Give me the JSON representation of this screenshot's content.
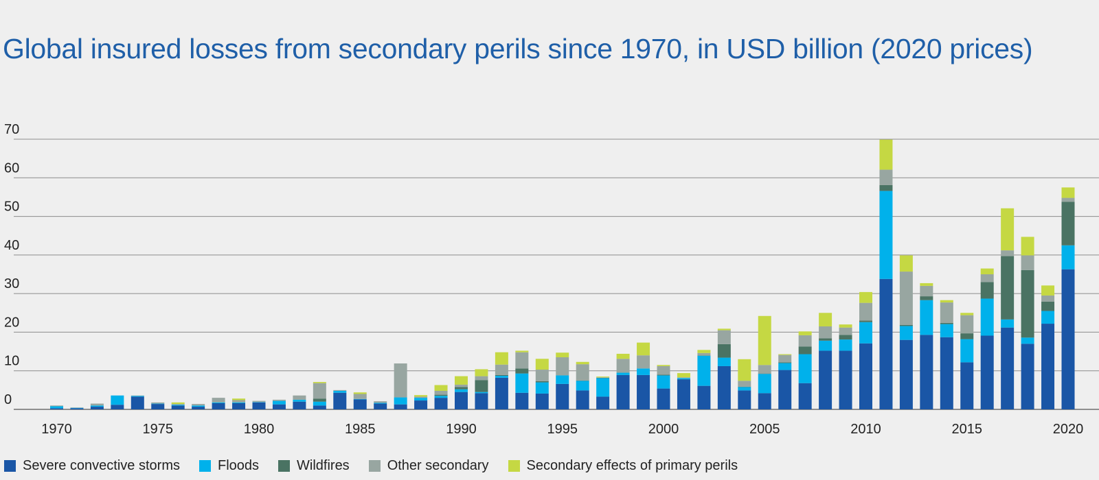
{
  "chart_data": {
    "type": "bar",
    "stacked": true,
    "title": "Global insured losses from secondary perils since 1970, in USD billion (2020 prices)",
    "xlabel": "",
    "ylabel": "",
    "ylim": [
      0,
      70
    ],
    "yticks": [
      "0",
      "10",
      "20",
      "30",
      "40",
      "50",
      "60",
      "70"
    ],
    "xticks": [
      "1970",
      "1975",
      "1980",
      "1985",
      "1990",
      "1995",
      "2000",
      "2005",
      "2010",
      "2015",
      "2020"
    ],
    "grid": true,
    "legend_position": "bottom",
    "categories": [
      1970,
      1971,
      1972,
      1973,
      1974,
      1975,
      1976,
      1977,
      1978,
      1979,
      1980,
      1981,
      1982,
      1983,
      1984,
      1985,
      1986,
      1987,
      1988,
      1989,
      1990,
      1991,
      1992,
      1993,
      1994,
      1995,
      1996,
      1997,
      1998,
      1999,
      2000,
      2001,
      2002,
      2003,
      2004,
      2005,
      2006,
      2007,
      2008,
      2009,
      2010,
      2011,
      2012,
      2013,
      2014,
      2015,
      2016,
      2017,
      2018,
      2019,
      2020
    ],
    "series": [
      {
        "name": "Severe convective storms",
        "color": "#1a56a6",
        "values": [
          0.3,
          0.3,
          0.7,
          1.2,
          3.3,
          1.4,
          1.0,
          0.7,
          1.6,
          1.6,
          1.8,
          1.3,
          2.0,
          1.0,
          4.3,
          2.6,
          1.5,
          1.3,
          2.3,
          3.0,
          4.5,
          4.2,
          8.2,
          4.3,
          4.1,
          6.6,
          4.9,
          3.3,
          8.9,
          8.9,
          5.4,
          7.8,
          6.1,
          11.2,
          4.9,
          4.2,
          10.2,
          6.8,
          15.2,
          15.2,
          17.1,
          33.8,
          18.0,
          19.3,
          18.7,
          12.2,
          19.1,
          21.2,
          17.0,
          22.2,
          36.3
        ]
      },
      {
        "name": "Floods",
        "color": "#00b1eb",
        "values": [
          0.5,
          0.1,
          0.3,
          2.4,
          0.2,
          0.1,
          0.2,
          0.3,
          0.2,
          0.2,
          0.1,
          0.9,
          0.5,
          1.0,
          0.5,
          0.1,
          0.2,
          1.8,
          0.7,
          0.5,
          0.7,
          0.3,
          0.5,
          5.0,
          2.9,
          2.2,
          2.5,
          4.8,
          0.6,
          1.7,
          3.4,
          0.3,
          7.8,
          2.2,
          0.9,
          5.0,
          1.8,
          7.5,
          2.6,
          2.9,
          5.5,
          22.8,
          3.6,
          9.0,
          3.4,
          6.0,
          9.6,
          2.1,
          1.6,
          3.3,
          6.2
        ]
      },
      {
        "name": "Wildfires",
        "color": "#4a7363",
        "values": [
          0,
          0,
          0,
          0,
          0,
          0,
          0,
          0,
          0,
          0,
          0,
          0,
          0,
          0.8,
          0,
          0,
          0,
          0,
          0,
          0.3,
          0.6,
          3.1,
          0.2,
          1.3,
          0.3,
          0,
          0.1,
          0.1,
          0,
          0,
          0.2,
          0,
          0.1,
          3.5,
          0.1,
          0.1,
          0.2,
          2.0,
          0.6,
          1.2,
          0.4,
          1.5,
          0.3,
          1.0,
          0.3,
          1.5,
          4.3,
          16.4,
          17.5,
          2.4,
          11.3
        ]
      },
      {
        "name": "Other secondary",
        "color": "#98a6a1",
        "values": [
          0.2,
          0.1,
          0.5,
          0,
          0.1,
          0.3,
          0.2,
          0.4,
          1.2,
          0.6,
          0.3,
          0.3,
          1.1,
          4.0,
          0.2,
          1.3,
          0.4,
          8.8,
          0.3,
          1.0,
          0.6,
          1.0,
          2.7,
          4.2,
          3.0,
          4.7,
          4.2,
          0.1,
          3.6,
          3.4,
          2.2,
          0.2,
          0.6,
          3.6,
          1.5,
          2.2,
          1.9,
          2.9,
          3.1,
          1.9,
          4.6,
          4.0,
          13.8,
          2.7,
          5.3,
          4.7,
          2.0,
          1.5,
          3.8,
          1.6,
          1.0
        ]
      },
      {
        "name": "Secondary effects of primary perils",
        "color": "#c5d843",
        "values": [
          0,
          0,
          0,
          0,
          0,
          0,
          0.4,
          0,
          0,
          0.4,
          0,
          0,
          0,
          0.3,
          0,
          0.4,
          0,
          0,
          0.4,
          1.5,
          2.2,
          1.8,
          3.2,
          0.4,
          2.8,
          1.2,
          0.6,
          0.2,
          1.3,
          3.3,
          0.3,
          1.1,
          0.8,
          0.4,
          5.6,
          12.7,
          0.2,
          1.0,
          3.5,
          0.8,
          2.8,
          7.8,
          4.2,
          0.7,
          0.6,
          0.6,
          1.5,
          10.9,
          4.8,
          2.6,
          2.7
        ]
      }
    ]
  }
}
